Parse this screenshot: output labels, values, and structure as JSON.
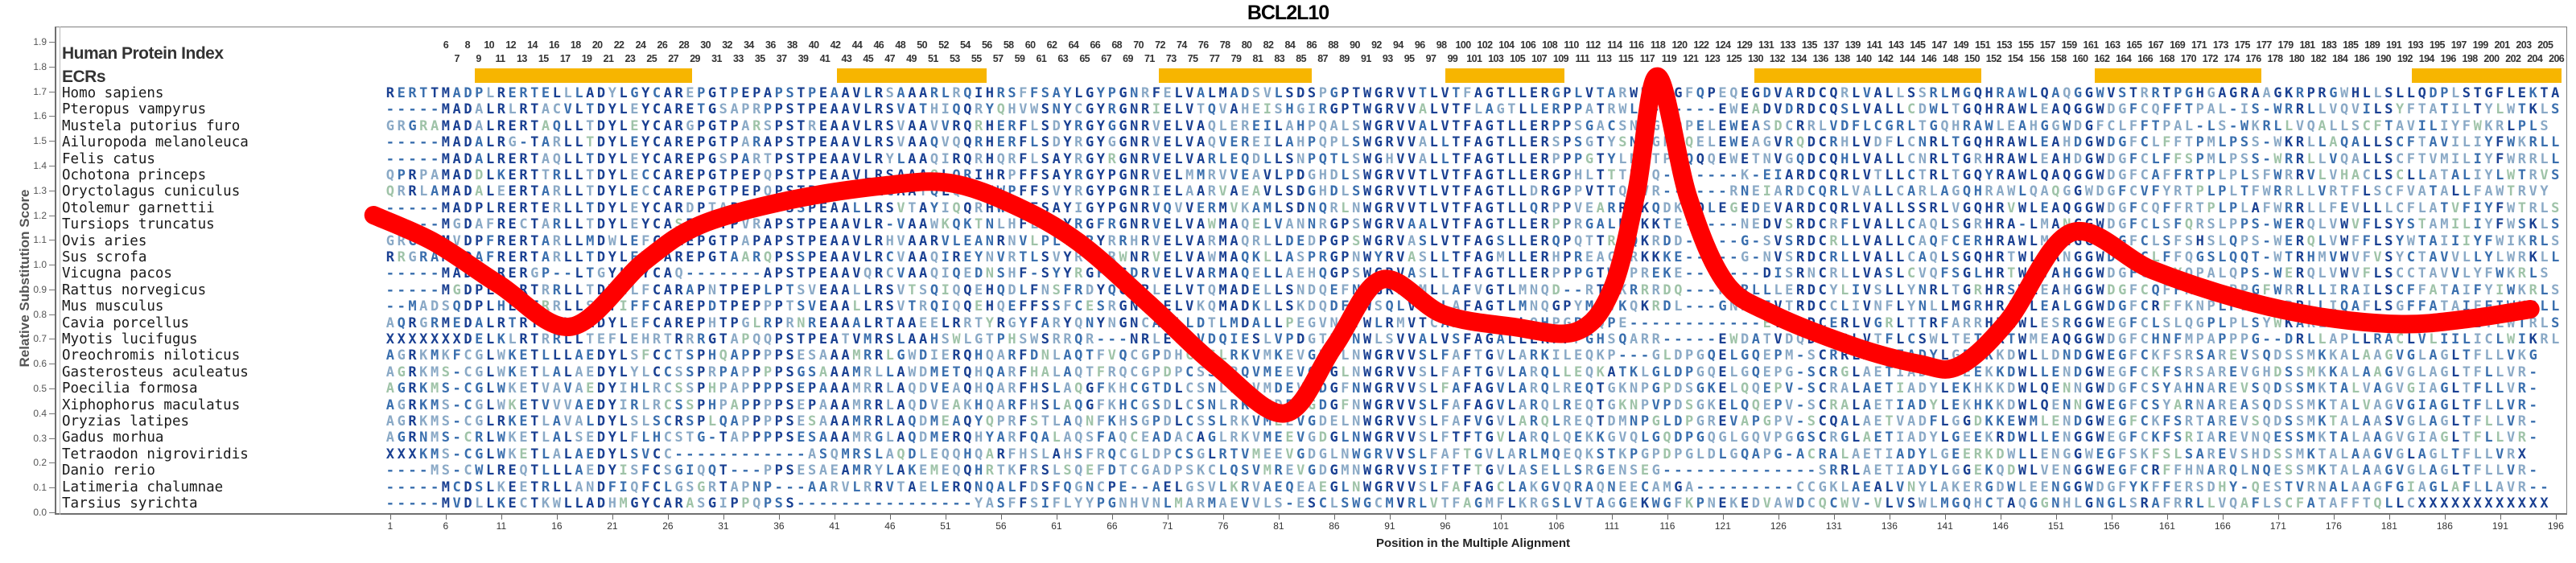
{
  "title": "BCL2L10",
  "ruler": {
    "label": "Human Protein Index",
    "upper": [
      6,
      8,
      10,
      12,
      14,
      16,
      18,
      20,
      22,
      24,
      26,
      28,
      30,
      32,
      34,
      36,
      38,
      40,
      42,
      44,
      46,
      48,
      50,
      52,
      54,
      56,
      58,
      60,
      62,
      64,
      66,
      68,
      70,
      72,
      74,
      76,
      78,
      80,
      82,
      84,
      86,
      88,
      90,
      92,
      94,
      96,
      98,
      100,
      102,
      104,
      106,
      108,
      110,
      112,
      114,
      116,
      118,
      120,
      122,
      124,
      129,
      131,
      133,
      135,
      137,
      139,
      141,
      143,
      145,
      147,
      149,
      151,
      153,
      155,
      157,
      159,
      161,
      163,
      165,
      167,
      169,
      171,
      173,
      175,
      177,
      179,
      181,
      183,
      185,
      189,
      191,
      193,
      195,
      197,
      199,
      201,
      203,
      205
    ],
    "lower": [
      7,
      9,
      11,
      13,
      15,
      17,
      19,
      21,
      23,
      25,
      27,
      29,
      31,
      33,
      35,
      37,
      39,
      41,
      43,
      45,
      47,
      49,
      51,
      53,
      55,
      57,
      59,
      61,
      63,
      65,
      67,
      69,
      71,
      73,
      75,
      77,
      79,
      81,
      83,
      85,
      87,
      89,
      91,
      93,
      95,
      97,
      99,
      101,
      103,
      105,
      107,
      109,
      111,
      113,
      115,
      117,
      119,
      121,
      123,
      125,
      130,
      132,
      134,
      136,
      138,
      140,
      142,
      144,
      146,
      148,
      150,
      152,
      154,
      156,
      158,
      160,
      162,
      164,
      166,
      168,
      170,
      172,
      174,
      176,
      178,
      180,
      182,
      184,
      186,
      190,
      192,
      194,
      196,
      198,
      200,
      202,
      204,
      206
    ]
  },
  "ecrs": {
    "label": "ECRs",
    "color": "#F7B500",
    "bars": [
      [
        8.6,
        28.2
      ],
      [
        41.2,
        54.7
      ],
      [
        70.2,
        84.0
      ],
      [
        96.0,
        106.7
      ],
      [
        123.8,
        144.3
      ],
      [
        154.5,
        169.5
      ],
      [
        183.0,
        196.5
      ]
    ]
  },
  "species": [
    "Homo sapiens",
    "Pteropus vampyrus",
    "Mustela putorius furo",
    "Ailuropoda melanoleuca",
    "Felis catus",
    "Ochotona princeps",
    "Oryctolagus cuniculus",
    "Otolemur garnettii",
    "Tursiops truncatus",
    "Ovis aries",
    "Sus scrofa",
    "Vicugna pacos",
    "Rattus norvegicus",
    "Mus musculus",
    "Cavia porcellus",
    "Myotis lucifugus",
    "Oreochromis niloticus",
    "Gasterosteus aculeatus",
    "Poecilia formosa",
    "Xiphophorus maculatus",
    "Oryzias latipes",
    "Gadus morhua",
    "Tetraodon nigroviridis",
    "Danio rerio",
    "Latimeria chalumnae",
    "Tarsius syrichta"
  ],
  "sequences": [
    "RERTTMADPLRERTELLLADYLGYCAREPGTPEPAPSTPEAAVLRSAAARLRQIHRSFFSAYLGYPGNRFELVALMADSVLSDSPGPTWGRVVTLVTFAGTLLERGPLVTARWKKNGFQPEQEGDVARDCQRLVALLSSRLMGQHRAWLQAQGGWVSTRRTPGHGAGRAAGKRPRGWHLLSLLQDPLSTGFLEKTA",
    "-----MADALRLRTACVLTDYLEYCARETGSAPRPPSTPEAAVLRSVATHIQQRYQHVWSNYCGYRGNRIELVTQVAHEISHGIRGPTWGRVVALVTFLAGTLLERPPATRWLK------EWEADVDRDCQSLVALLCDWLTGQHRAWLEAQGGWDGFCQFFTPAL-IS-WRRLLVQVILSYFTATILTYLWTKLS",
    "GRGRAMADALRERTAQLLTDYLEYCARGPGTPARSPSTREAAVLRSVAAVVRQRHERFLSDYRGYGGNRVELVAQLEREILAHPQALSWGRVVALVTFAGTLLERPPSGACSNLGPDPELEWEASDCRRLVDFLCGRLTGQHRAWLEAHGGWDGFCLFFTPAL-LS-WKRLLVQALLSCFTAVILIYFWKRLPLS",
    "-----MADALRG-TARLLTDYLEYCAREPGTPARAPSTPEAAVLRSVAAQVQQRHERFLSDYRGYGGNRVELVAQVEREILAHPQPLSWGRVVALLTFAGTLLERSPSGTYSNLGPDQELEWEAGVRQDCRHLVDFLCNRLTGQHRAWLEAHDGWDGFCLFFTPMLPSS-WKRLLAQALLSCFTAVILIYFWKRLL",
    "-----MADALRERTAQLLTDYLEYCAREPGSPARTPSTPEAAVLRYLAAQIRQRHQRFLSAYRGYRGNRVELVARLEQDLLSNPQTLSWGHVVALLTFAGTLLERPPPGTYLNLTPDQQQEWETNVGQDCQHLVALLCNRLTGRHRAWLEAHDGWDGFCLFFSPMLPSS-WRRLLVQALLSCFTVMILIYFWRRLL",
    "QPRPAMADDLKERTTRLLTDYLECCAREPGTPEPQPSTPEAAVLRSAAAQLQRIHRPFFSAYRGYPGNRVELMMRVVEAVLPDGHDLSWGRVVTLVTFAGTLLERGPHLTTTRWQ-------K-EIARDCQRLVTLLCTRLTGQYRAWLQAQGGWDGFCAFFRTPLPLSFWRRVLVHACLSCLLATALIYLWTRVS",
    "QRRLAMADALEERTARLLTDYLECCAREPGTPEPQPSTPEAAVLRCAATQLQRVHWPFFSVYRGYPGNRIELAARVAEAVLSDGHDLSWGRVVTLVTFAGTLLDRGPPVTTQRVR------RNEIARDCQRLVALLCARLAGQHRAWLQAQGGWDGFCVFYRTPLPLTFWRRLLVRTFLSCFVATALLFAWTRVY",
    "-----MADPLRERTERLLTDYLEYCARDPTAPEPTPSSPEAALLRSVTAYIQQRHWSFFSAYIGYPGNRVQVVERMVKAMLSDNQRLNWGRVVTLVTFAGTLLQRPPVEARREKQDKSQLEGEDEVARDCQRLVALLSSRLVGQHRVWLEAQGGWDGFCQFFRTPLPLAFWRRLLFEVLLLCFLATVFIYFWTRLS",
    "-----MGDAFRECTARLLTDYLEYCASERGTPVRAPSTPEAAVLR-VAAWKQKTNLHFLSQYRGFRGNRVELVAWMAQELVANNRGPSWGRVAALVTFAGTLLERPPRGALRRKKTE-----NEDVSRDCRFLVALLCAQLSGRHRA-LMANGGWDGFCLSFQRSLPPS-WERQLVWVFLSYSTAMILIYFWSKLS",
    "GRGGAMVDPFRERTARLLMDWLEFCAREPGTPAPAPSTPEAAVLRHVAARVLEANRNVLPLYRRYRRHRVELVARMAQRLLDEDPGPSWGRVASLVTFAGSLLERQPQTTRRQKRDD-----G-SVSRDCRLLVALLCAQFCERHRAWLMANGGWDGFCLSFSHSLQPS-WERQLVWFFLSYWTAIIIYFWIKRLS",
    "RRGRAMADAFRERTARLLTDYLEYCAREPGTAARQPSSPEAAVLRCVAAQIREYNVRTLSVYRGFRWNRVELVAWMAQKLLASPRGPNWYRVASLLTFAGMLLERHPREACGRKKKE-----G-NVSRDCRLLVALLCAQLSGQHRTWLLANGGWDGFCLFFQGSLQQT-WTRHMVWVFVSYCTAVVLLYLWRKLL",
    "-----MADGLRERGP--LTGYLQYCAQ-------APSTPEAAVQRCVAAQIQEDNSHF-SYYRGFRGDRVELVARMAQELLAEHQGPSWGRVASLLTFAGTLLERPPPGTWGPREKE-------DISRNCRLLVASLCVQFSGLHRTWLVAHGGWDGFCLFYQPALQPS-WERQLVWVFLSCCTAVVLYFWKRLS",
    "-----MGDPLQDRTRRLLTDYILFCARAPNTPEPLPTSVEAALLRSVTSQIQQEHQDLFNSFRDYQGNRLELVTQMADELLSNDQEFNWGRLVMLLAFVGTLMNQD--RTVKRRRDQ---RNRLLLERDCYLIVSLLYNRLTGRHRSWLEAHGGWDGFCQFFKNPLPPGFWRRLLIRAILSCFFATAIFYIWKRLS",
    "--MADSQDPLHERTRRLLSDYIFFCAREPDTPEPPPTSVEAALLRSVTRQIQQEHQEFFSSFCESRGNRLELVKQMADKLLSKDQDFSWSQLVMLLAFAGTLMNQGPYMAVKQKRDL---GNRVIVTRDCCLIVNFLYNLLMGRHRARLEALGGWDGFCRFFKNPLPLGFWRRLLIQAFLSGFFATAIFFIWKRLL",
    "AQRGRMEDALRTRTEQVFADYLEFCAREPHTPGLRPRNREAAALRTAAEELRRTYRGYFARYQNYNGNCAELLDTLMDALLPEGVNPTWLRMVTCAALAGTLLQHPGRRQPE------------EVTRDCERLVGRLTTRFARRHRAWLESRGGWEGFCLSLQGPLPLSYWKARLFQTFMSCILATVLIYLWTRLS",
    "XXXXXXXDELKLRTRRLLTEFLEHRTRRRGTAPQQPSTPEATVMRSLAAHSWLGTPHSWSRRQR---NRLEQMVDQIESLVPDGTDPNWLSVVALVSFAGALLERPPPGHSQARR-----EWDATVDQDCQRLVTFLCSWLTETHRTWMEAQGGWDGFCHNFMPAPPPG--DRLLAPLLRACLVLIILICLWIKRL",
    "AGRKMKFCGLWKETLLLAEDYLSFCCTSPHQAPPPPSESAAAMRRLGWDIERQHQARFDNLAQTFVQCGPDHCLSLRKVMKEVGDGLNWGRVVSLFAFTGVLARKILEQKP---GLDPGQELGQEPM-SCRRLAETIADYLGEEKKDWLLDNDGWEGFCKFSRSAREVSQDSSMKKALAAGVGLAGLTFLLVKG",
    "AGRKMS-CGLWKETLALAEDYLYLCCSSPRPAPPPPSGSAAAMRLLAWDMETQHQARFHALAQTFRQCGPDPCSSLRQVMEEVGDGLNWGRVVSLFAFTGVLARQLLEQKATKLGLDPGQELGQEPG-SCRGLAETIADYLGEEKKDWLLENDGWEGFCKFSRSAREVGHDSSMKKALAAGVGLAGLTFLLVR-",
    "AGRKMS-CGLWKETVAVAEDYIHLRCSSPHPAPPPPSEPAAAMRRLAQDVEAQHQARFHSLAQGFKHCGTDLCSNLRKVMDEVGDGFNWGRVVSLFAFAGVLARQLREQTGKNPGPDSGKELQQEPV-SCRALAETIADYLEKHKKDWLQENNGWDGFCSYAHNAREVSQDSSMKTALVAGVGIAGLTFLLVR-",
    "AGRKMS-CGLWKETVVVAEDYIRLRCSSPHPAPPPPSEPAAAMRRLAQDVEAKHQARFHSLAQGFKHCGSDLCSNLRKVMDEVGDGFNWGRVVSLFAFAGVLARQLREQTGKNPVPDSGKELQQEPV-SCRALAETIADYLEKHKKDWLQENNGWEGFCSYARNAREASQDSSMKTALVAGVGIAGLTFLLVR-",
    "AGRKMS-CGLRKETLAVALDYLSLSCRSPLQAPPPPSESAAAMRRLAQDMEAQYQPRFSTLAQNFKHSGPDLCSSLRKVMEEVGDELNWGRVVSLFAFVGVLARQLREQTDMNPGLDPGREVAPGPV-SCQALAETVADFLGGDKKEWMLENDGWEGFCKFSRTAREVSQDSSMKTALAASVGLAGLTFLLVR-",
    "AGRNMS-CRLWKETLALSEDYLFLHCSTG-TAPPPPSESAAAMRGLAQDMERQHYARFQALAQSFAQCEADACAGLRKVMEEVGDGLNWGRVVSLFTFTGVLARQLQEKKGVQLGQDPGQGLGQVPGGSCRGLAETIADYLGEEKRDWLLENGGWEGFCKFSRIAREVNQESSMKTALAAGVGIAGLTFLLVR-",
    "XXXKMS-CGLWKETLALAEDYLSVCC------------ASQMRSLAQDLEQQHQARFHSLAHSFRQCGLDPCSGLRTVMEEVGDGLNWGRVVSLFAFTGVLARLMQEQKSTKPGPDPGLDLGQAPG-ACRALAETIADYLGEERKDWLLENGGWEGFSKFSLSAREVSHDSSMKTALAAGVGLAGLTFLLVRX",
    "----MS-CWLREQTLLLAEDYISFCSGIQQT---PPSESAEAMRYLAKEMEQQHRTKFRSLSQEFDTCGADPSKCLQSVMREVGDGMNWGRVVSIFTFTGVLASELLSRGENSEG--------------SRRLAETIADYLGGEKQDWLVENGGWEGFCRFFHNARQLNQESSMKTALAAGVGLAGLTFLLVR-",
    "-----MCDSLKEETRLLANDFIQFCLGSGRTAPNP---AARVLRRVTAELERQNQALFDSFQGNCPE--AELGSVLKRVAEQEAEGLNWGRVVSLFAFAGCLAKGVQRAQNEECAMGA---------CCGKLAEALVNYLAKERGDWLEENGGWDGFYKFFERSDHY-QESTVRNALAAGFGIAGLAFLLAVR--",
    "-----MVDLLKECTKWLLADHMGYCARASGIPPQPSS----------------YASFFSIFLYYPGNHVNLMARMAEVVLS-ESCLSWGCMVRLVTFAGMFLKRGSLVTAGGEKWGFKPNEKEDVAWDCQCWV-VLVSWLMGQHCTAQGGNHLGNGLSRAFRRLLVQAFLSCFATAFFTQLLCXXXXXXXXXXXX"
  ],
  "seq_palette": {
    "dark": "#1a4092",
    "mid": "#3a6fae",
    "light": "#8aa9c6",
    "pale": "#9fc3a8"
  },
  "axes": {
    "y_label": "Relative Substitution Score",
    "y_ticks": [
      "0.0",
      "0.1",
      "0.2",
      "0.3",
      "0.4",
      "0.5",
      "0.6",
      "0.7",
      "0.8",
      "0.9",
      "1.0",
      "1.1",
      "1.2",
      "1.3",
      "1.4",
      "1.5",
      "1.6",
      "1.7",
      "1.8",
      "1.9"
    ],
    "x_label": "Position in the Multiple Alignment",
    "x_ticks": [
      1,
      6,
      11,
      16,
      21,
      26,
      31,
      36,
      41,
      46,
      51,
      56,
      61,
      66,
      71,
      76,
      81,
      86,
      91,
      96,
      101,
      106,
      111,
      116,
      121,
      126,
      131,
      136,
      141,
      146,
      151,
      156,
      161,
      166,
      171,
      176,
      181,
      186,
      191,
      196
    ]
  },
  "chart_data": {
    "type": "line",
    "title": "BCL2L10",
    "xlabel": "Position in the Multiple Alignment",
    "ylabel": "Relative Substitution Score",
    "xlim": [
      1,
      196
    ],
    "ylim": [
      0.0,
      1.9
    ],
    "grid": false,
    "series": [
      {
        "name": "relative-substitution-score-curve",
        "color": "#FF0000",
        "points": [
          [
            -0.5,
            1.2
          ],
          [
            5,
            1.09
          ],
          [
            10.8,
            0.92
          ],
          [
            17.3,
            0.75
          ],
          [
            23.8,
            1.01
          ],
          [
            28.9,
            1.16
          ],
          [
            36.9,
            1.26
          ],
          [
            45.6,
            1.32
          ],
          [
            51.4,
            1.33
          ],
          [
            57.2,
            1.24
          ],
          [
            63,
            1.09
          ],
          [
            69.6,
            0.83
          ],
          [
            75.4,
            0.59
          ],
          [
            81.6,
            0.4
          ],
          [
            86,
            0.67
          ],
          [
            90.3,
            0.94
          ],
          [
            95.8,
            0.8
          ],
          [
            102,
            0.75
          ],
          [
            107.8,
            0.73
          ],
          [
            111,
            0.9
          ],
          [
            113.2,
            1.29
          ],
          [
            115.1,
            1.76
          ],
          [
            117.9,
            1.27
          ],
          [
            121.2,
            0.93
          ],
          [
            125.5,
            0.8
          ],
          [
            132.8,
            0.67
          ],
          [
            138.6,
            0.6
          ],
          [
            142.2,
            0.59
          ],
          [
            146.6,
            0.77
          ],
          [
            152.4,
            1.13
          ],
          [
            159.6,
            0.98
          ],
          [
            167.6,
            0.86
          ],
          [
            174.8,
            0.79
          ],
          [
            182.1,
            0.76
          ],
          [
            187.9,
            0.78
          ],
          [
            193.7,
            0.82
          ]
        ]
      }
    ],
    "annotations": {
      "ecr_regions_positions": [
        [
          8.6,
          28.2
        ],
        [
          41.2,
          54.7
        ],
        [
          70.2,
          84.0
        ],
        [
          96.0,
          106.7
        ],
        [
          123.8,
          144.3
        ],
        [
          154.5,
          169.5
        ],
        [
          183.0,
          196.5
        ]
      ]
    }
  }
}
